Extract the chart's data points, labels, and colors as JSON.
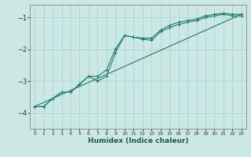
{
  "xlabel": "Humidex (Indice chaleur)",
  "ylabel": "",
  "background_color": "#cce8e4",
  "grid_color": "#aed4cf",
  "line_color": "#1a7a6e",
  "xlim": [
    -0.5,
    23.5
  ],
  "ylim": [
    -4.5,
    -0.6
  ],
  "yticks": [
    -4,
    -3,
    -2,
    -1
  ],
  "xticks": [
    0,
    1,
    2,
    3,
    4,
    5,
    6,
    7,
    8,
    9,
    10,
    11,
    12,
    13,
    14,
    15,
    16,
    17,
    18,
    19,
    20,
    21,
    22,
    23
  ],
  "line1_x": [
    0,
    1,
    2,
    3,
    4,
    5,
    6,
    7,
    8,
    9,
    10,
    11,
    12,
    13,
    14,
    15,
    16,
    17,
    18,
    19,
    20,
    21,
    22,
    23
  ],
  "line1_y": [
    -3.8,
    -3.8,
    -3.55,
    -3.35,
    -3.35,
    -3.1,
    -2.85,
    -3.0,
    -2.85,
    -2.1,
    -1.57,
    -1.62,
    -1.68,
    -1.72,
    -1.45,
    -1.32,
    -1.22,
    -1.15,
    -1.1,
    -1.0,
    -0.95,
    -0.9,
    -0.95,
    -0.95
  ],
  "line2_x": [
    0,
    1,
    2,
    3,
    4,
    5,
    6,
    7,
    8,
    9,
    10,
    11,
    12,
    13,
    14,
    15,
    16,
    17,
    18,
    19,
    20,
    21,
    22,
    23
  ],
  "line2_y": [
    -3.8,
    -3.8,
    -3.55,
    -3.35,
    -3.35,
    -3.1,
    -2.85,
    -2.85,
    -2.65,
    -1.98,
    -1.57,
    -1.62,
    -1.65,
    -1.65,
    -1.4,
    -1.25,
    -1.15,
    -1.1,
    -1.05,
    -0.95,
    -0.9,
    -0.87,
    -0.9,
    -0.9
  ],
  "line3_x": [
    0,
    23
  ],
  "line3_y": [
    -3.8,
    -0.9
  ],
  "marker": "+"
}
